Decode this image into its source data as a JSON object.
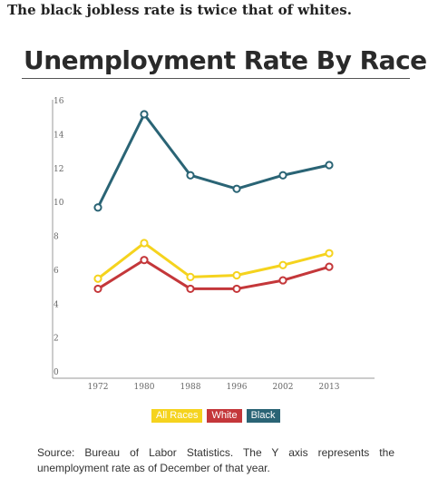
{
  "headline": "The black jobless rate is twice that of whites.",
  "source": "Source: Bureau of Labor Statistics. The Y axis represents the unemployment rate as of December of that year.",
  "colors": {
    "all_races": "#f5d31e",
    "white": "#c4373a",
    "black": "#2a6475",
    "axis": "#999999"
  },
  "chart_data": {
    "type": "line",
    "title": "Unemployment Rate By Race",
    "xlabel": "",
    "ylabel": "",
    "x": [
      "1972",
      "1980",
      "1988",
      "1996",
      "2002",
      "2013"
    ],
    "ylim": [
      0,
      16
    ],
    "yticks": [
      0,
      2,
      4,
      6,
      8,
      10,
      12,
      14,
      16
    ],
    "grid": false,
    "legend_position": "bottom",
    "series": [
      {
        "name": "All Races",
        "color": "#f5d31e",
        "values": [
          5.5,
          7.6,
          5.6,
          5.7,
          6.3,
          7.0
        ]
      },
      {
        "name": "White",
        "color": "#c4373a",
        "values": [
          4.9,
          6.6,
          4.9,
          4.9,
          5.4,
          6.2
        ]
      },
      {
        "name": "Black",
        "color": "#2a6475",
        "values": [
          9.7,
          15.2,
          11.6,
          10.8,
          11.6,
          12.2
        ]
      }
    ]
  }
}
